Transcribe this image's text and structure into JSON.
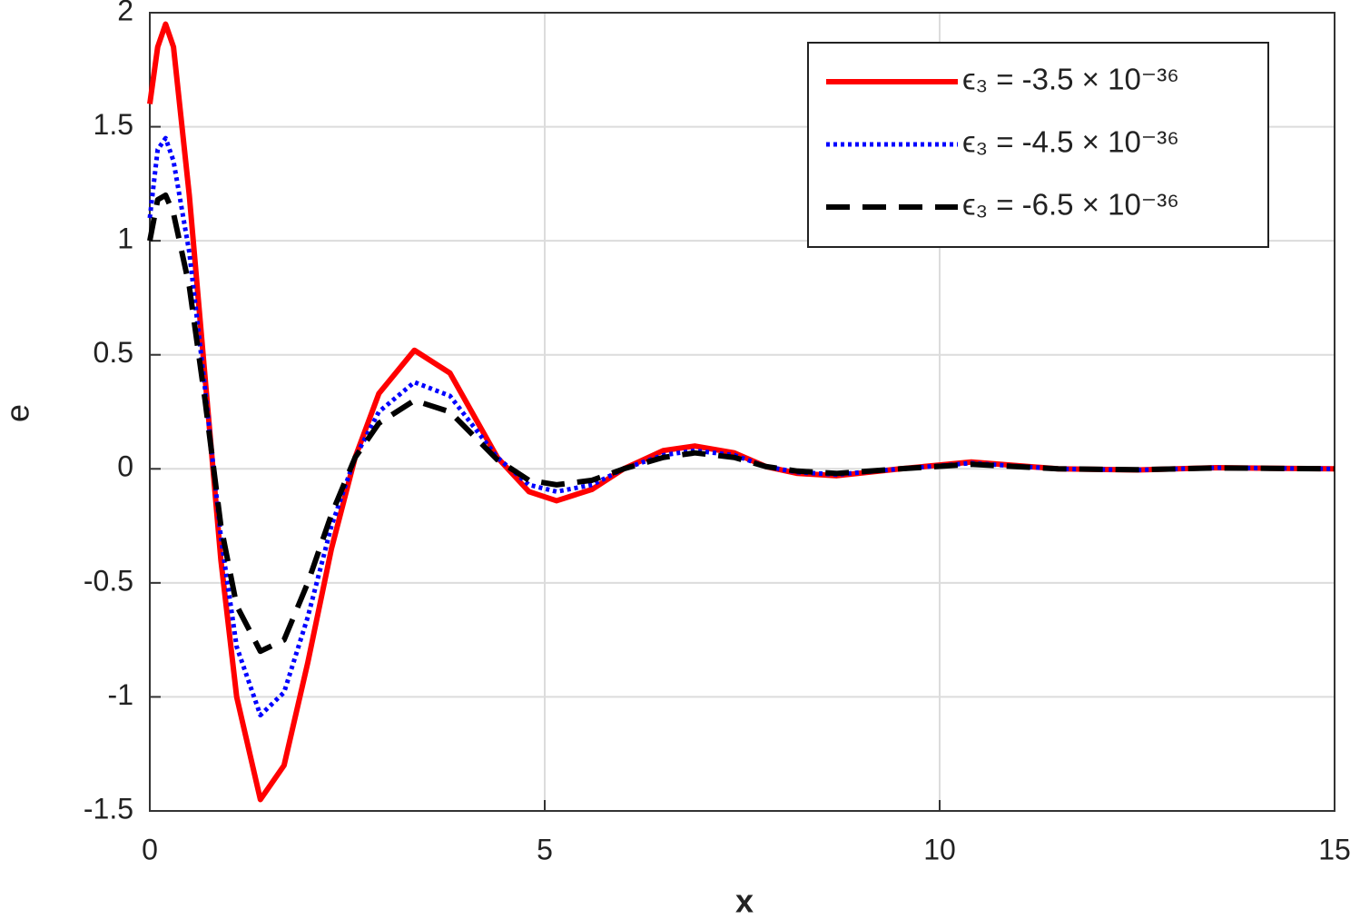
{
  "chart_data": {
    "type": "line",
    "xlabel": "x",
    "ylabel": "e",
    "x": [
      0,
      0.1,
      0.2,
      0.3,
      0.5,
      0.7,
      0.9,
      1.1,
      1.4,
      1.7,
      2.0,
      2.3,
      2.6,
      2.9,
      3.35,
      3.8,
      4.4,
      4.8,
      5.15,
      5.6,
      6.0,
      6.5,
      6.9,
      7.4,
      7.8,
      8.2,
      8.7,
      9.5,
      10.4,
      11.5,
      12.5,
      13.5,
      15
    ],
    "series": [
      {
        "name": "ϵ₃ = -3.5 × 10⁻³⁶",
        "color": "#ff0000",
        "style": "solid",
        "values": [
          1.6,
          1.85,
          1.95,
          1.85,
          1.2,
          0.4,
          -0.4,
          -1.0,
          -1.45,
          -1.3,
          -0.85,
          -0.35,
          0.05,
          0.33,
          0.52,
          0.42,
          0.05,
          -0.1,
          -0.14,
          -0.09,
          0.0,
          0.08,
          0.1,
          0.07,
          0.01,
          -0.02,
          -0.03,
          0.0,
          0.03,
          0.0,
          -0.005,
          0.005,
          0
        ]
      },
      {
        "name": "ϵ₃ = -4.5 × 10⁻³⁶",
        "color": "#0000ff",
        "style": "dotted",
        "values": [
          1.1,
          1.4,
          1.45,
          1.35,
          0.95,
          0.35,
          -0.3,
          -0.78,
          -1.08,
          -0.98,
          -0.65,
          -0.25,
          0.05,
          0.25,
          0.38,
          0.32,
          0.05,
          -0.07,
          -0.1,
          -0.07,
          0.0,
          0.06,
          0.08,
          0.06,
          0.01,
          -0.015,
          -0.025,
          0.0,
          0.025,
          0.0,
          -0.005,
          0.005,
          0
        ]
      },
      {
        "name": "ϵ₃ = -6.5 × 10⁻³⁶",
        "color": "#000000",
        "style": "dashed",
        "values": [
          1.0,
          1.18,
          1.2,
          1.12,
          0.8,
          0.3,
          -0.25,
          -0.6,
          -0.8,
          -0.75,
          -0.5,
          -0.2,
          0.05,
          0.2,
          0.3,
          0.25,
          0.04,
          -0.05,
          -0.07,
          -0.05,
          0.0,
          0.05,
          0.07,
          0.05,
          0.01,
          -0.01,
          -0.02,
          0.0,
          0.02,
          0.0,
          -0.004,
          0.004,
          0
        ]
      }
    ],
    "xlim": [
      0,
      15
    ],
    "xticks": [
      0,
      5,
      10,
      15
    ],
    "ylim": [
      -1.5,
      2
    ],
    "yticks": [
      -1.5,
      -1,
      -0.5,
      0,
      0.5,
      1,
      1.5,
      2
    ],
    "grid": true,
    "legend": "northeast"
  }
}
